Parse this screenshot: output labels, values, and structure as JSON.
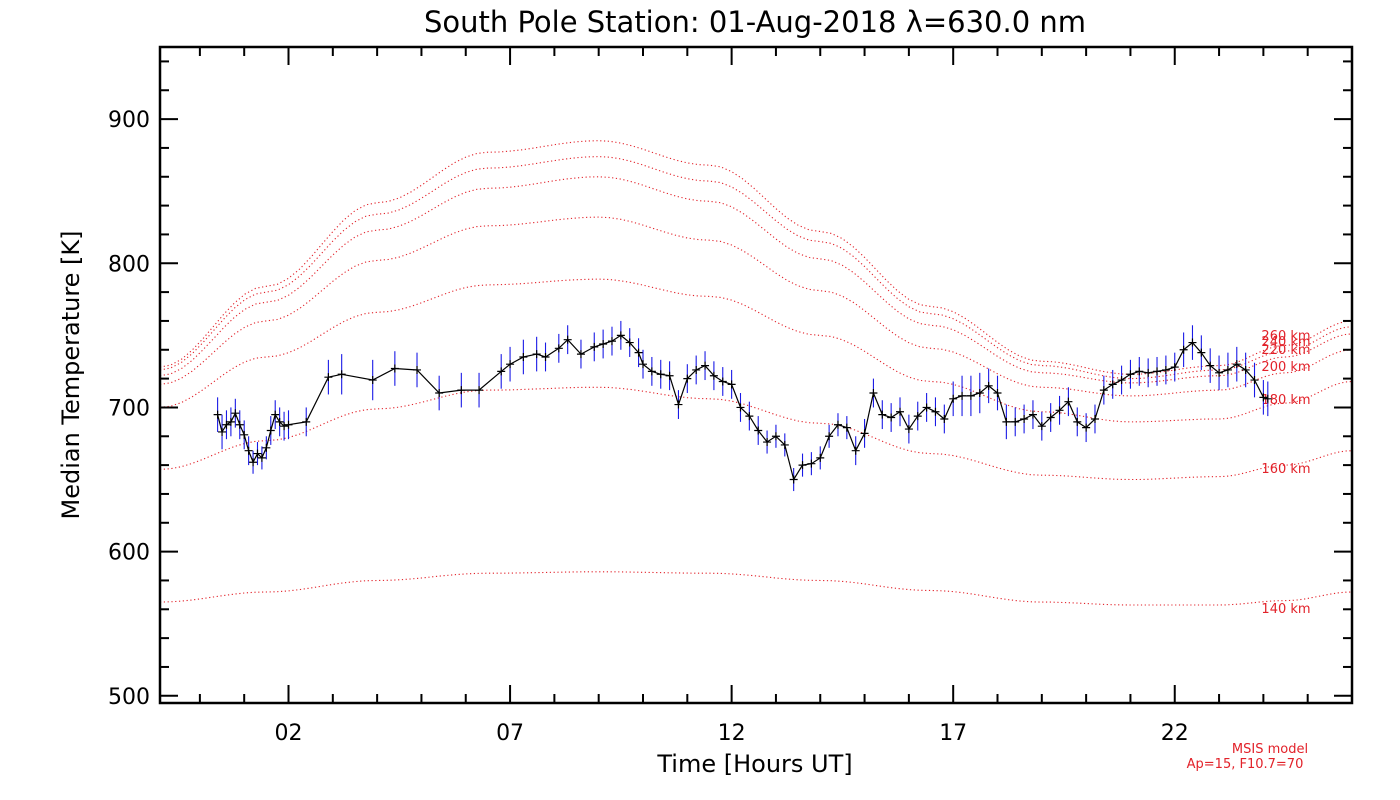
{
  "chart_data": {
    "type": "line",
    "title": "South Pole Station: 01-Aug-2018 λ=630.0 nm",
    "xlabel": "Time [Hours UT]",
    "ylabel": "Median Temperature [K]",
    "xlim": [
      -0.9,
      26.0
    ],
    "ylim": [
      495,
      950
    ],
    "xticks": [
      2,
      7,
      12,
      17,
      22
    ],
    "xtick_labels": [
      "02",
      "07",
      "12",
      "17",
      "22"
    ],
    "yticks": [
      500,
      600,
      700,
      800,
      900
    ],
    "ytick_labels": [
      "500",
      "600",
      "700",
      "800",
      "900"
    ],
    "grid": false,
    "colors": {
      "data_line": "#000000",
      "error_bars": "#1a1ae6",
      "model": "#e2222a",
      "axes": "#000000"
    },
    "series": [
      {
        "name": "",
        "style": "solid line with plus markers and vertical error bars",
        "x": [
          0.4,
          0.5,
          0.6,
          0.7,
          0.8,
          0.9,
          1.0,
          1.1,
          1.2,
          1.3,
          1.4,
          1.5,
          1.6,
          1.7,
          1.8,
          1.9,
          2.0,
          2.4,
          2.9,
          3.2,
          3.9,
          4.4,
          4.9,
          5.4,
          5.9,
          6.3,
          6.8,
          7.0,
          7.3,
          7.6,
          7.8,
          8.1,
          8.3,
          8.6,
          8.9,
          9.1,
          9.3,
          9.5,
          9.7,
          9.9,
          10.0,
          10.2,
          10.4,
          10.6,
          10.8,
          11.0,
          11.2,
          11.4,
          11.6,
          11.8,
          12.0,
          12.2,
          12.4,
          12.6,
          12.8,
          13.0,
          13.2,
          13.4,
          13.6,
          13.8,
          14.0,
          14.2,
          14.4,
          14.6,
          14.8,
          15.0,
          15.2,
          15.4,
          15.6,
          15.8,
          16.0,
          16.2,
          16.4,
          16.6,
          16.8,
          17.0,
          17.2,
          17.4,
          17.6,
          17.8,
          18.0,
          18.2,
          18.4,
          18.6,
          18.8,
          19.0,
          19.2,
          19.4,
          19.6,
          19.8,
          20.0,
          20.2,
          20.4,
          20.6,
          20.8,
          21.0,
          21.2,
          21.4,
          21.6,
          21.8,
          22.0,
          22.2,
          22.4,
          22.6,
          22.8,
          23.0,
          23.2,
          23.4,
          23.6,
          23.8,
          24.0,
          24.1
        ],
        "y": [
          695,
          683,
          688,
          690,
          696,
          688,
          681,
          670,
          662,
          668,
          665,
          672,
          684,
          695,
          690,
          687,
          688,
          690,
          721,
          723,
          719,
          727,
          726,
          710,
          712,
          712,
          725,
          730,
          735,
          737,
          735,
          741,
          747,
          737,
          742,
          744,
          746,
          750,
          745,
          738,
          730,
          725,
          723,
          722,
          702,
          720,
          726,
          729,
          722,
          718,
          716,
          700,
          694,
          684,
          676,
          680,
          674,
          650,
          660,
          661,
          665,
          680,
          688,
          686,
          670,
          682,
          710,
          695,
          693,
          697,
          685,
          694,
          700,
          697,
          692,
          706,
          708,
          708,
          710,
          715,
          710,
          690,
          690,
          692,
          695,
          687,
          693,
          698,
          704,
          690,
          686,
          692,
          712,
          716,
          719,
          723,
          725,
          724,
          725,
          726,
          728,
          740,
          745,
          738,
          729,
          724,
          726,
          730,
          726,
          719,
          707,
          706
        ],
        "err": [
          12,
          12,
          10,
          10,
          10,
          10,
          10,
          10,
          8,
          8,
          8,
          8,
          10,
          10,
          10,
          10,
          10,
          10,
          12,
          14,
          14,
          12,
          12,
          12,
          12,
          12,
          12,
          12,
          12,
          12,
          10,
          10,
          10,
          10,
          10,
          10,
          10,
          10,
          10,
          10,
          10,
          10,
          10,
          10,
          10,
          10,
          10,
          10,
          10,
          10,
          10,
          10,
          10,
          10,
          8,
          8,
          8,
          8,
          8,
          8,
          8,
          8,
          8,
          8,
          10,
          10,
          10,
          10,
          10,
          10,
          10,
          10,
          10,
          10,
          10,
          12,
          14,
          14,
          14,
          12,
          12,
          12,
          10,
          10,
          10,
          10,
          10,
          10,
          10,
          10,
          10,
          10,
          10,
          10,
          10,
          10,
          10,
          10,
          10,
          10,
          10,
          12,
          12,
          12,
          12,
          12,
          12,
          12,
          12,
          12,
          12,
          12
        ]
      }
    ],
    "model_curves": [
      {
        "label": "140 km",
        "x": [
          -0.9,
          1.5,
          4.0,
          6.5,
          9.0,
          11.5,
          14.0,
          16.5,
          19.0,
          21.0,
          23.0,
          24.5,
          26.0
        ],
        "y": [
          565,
          572,
          580,
          585,
          586,
          585,
          580,
          573,
          565,
          563,
          563,
          566,
          572
        ]
      },
      {
        "label": "160 km",
        "x": [
          -0.9,
          1.5,
          4.0,
          6.5,
          9.0,
          11.5,
          14.0,
          16.5,
          19.0,
          21.0,
          23.0,
          24.5,
          26.0
        ],
        "y": [
          657,
          677,
          699,
          712,
          714,
          706,
          689,
          668,
          653,
          650,
          652,
          660,
          670
        ]
      },
      {
        "label": "180 km",
        "x": [
          -0.9,
          1.5,
          4.0,
          6.5,
          9.0,
          11.5,
          14.0,
          16.5,
          19.0,
          21.0,
          23.0,
          24.5,
          26.0
        ],
        "y": [
          700,
          735,
          766,
          785,
          789,
          777,
          750,
          718,
          697,
          690,
          692,
          703,
          718
        ]
      },
      {
        "label": "200 km",
        "x": [
          -0.9,
          1.5,
          4.0,
          6.5,
          9.0,
          11.5,
          14.0,
          16.5,
          19.0,
          21.0,
          23.0,
          24.5,
          26.0
        ],
        "y": [
          716,
          760,
          802,
          826,
          832,
          816,
          781,
          741,
          714,
          708,
          712,
          724,
          740
        ]
      },
      {
        "label": "220 km",
        "x": [
          -0.9,
          1.5,
          4.0,
          6.5,
          9.0,
          11.5,
          14.0,
          16.5,
          19.0,
          21.0,
          23.0,
          24.5,
          26.0
        ],
        "y": [
          722,
          773,
          823,
          852,
          860,
          843,
          803,
          757,
          724,
          717,
          722,
          735,
          751
        ]
      },
      {
        "label": "240 km",
        "x": [
          -0.9,
          1.5,
          4.0,
          6.5,
          9.0,
          11.5,
          14.0,
          16.5,
          19.0,
          21.0,
          23.0,
          24.5,
          26.0
        ],
        "y": [
          726,
          780,
          834,
          866,
          874,
          857,
          815,
          765,
          729,
          720,
          726,
          739,
          756
        ]
      },
      {
        "label": "260 km",
        "x": [
          -0.9,
          1.5,
          4.0,
          6.5,
          9.0,
          11.5,
          14.0,
          16.5,
          19.0,
          21.0,
          23.0,
          24.5,
          26.0
        ],
        "y": [
          728,
          784,
          842,
          877,
          885,
          868,
          822,
          770,
          732,
          723,
          729,
          743,
          760
        ]
      }
    ],
    "model_note": [
      "MSIS model",
      "Ap=15, F10.7=70"
    ]
  }
}
